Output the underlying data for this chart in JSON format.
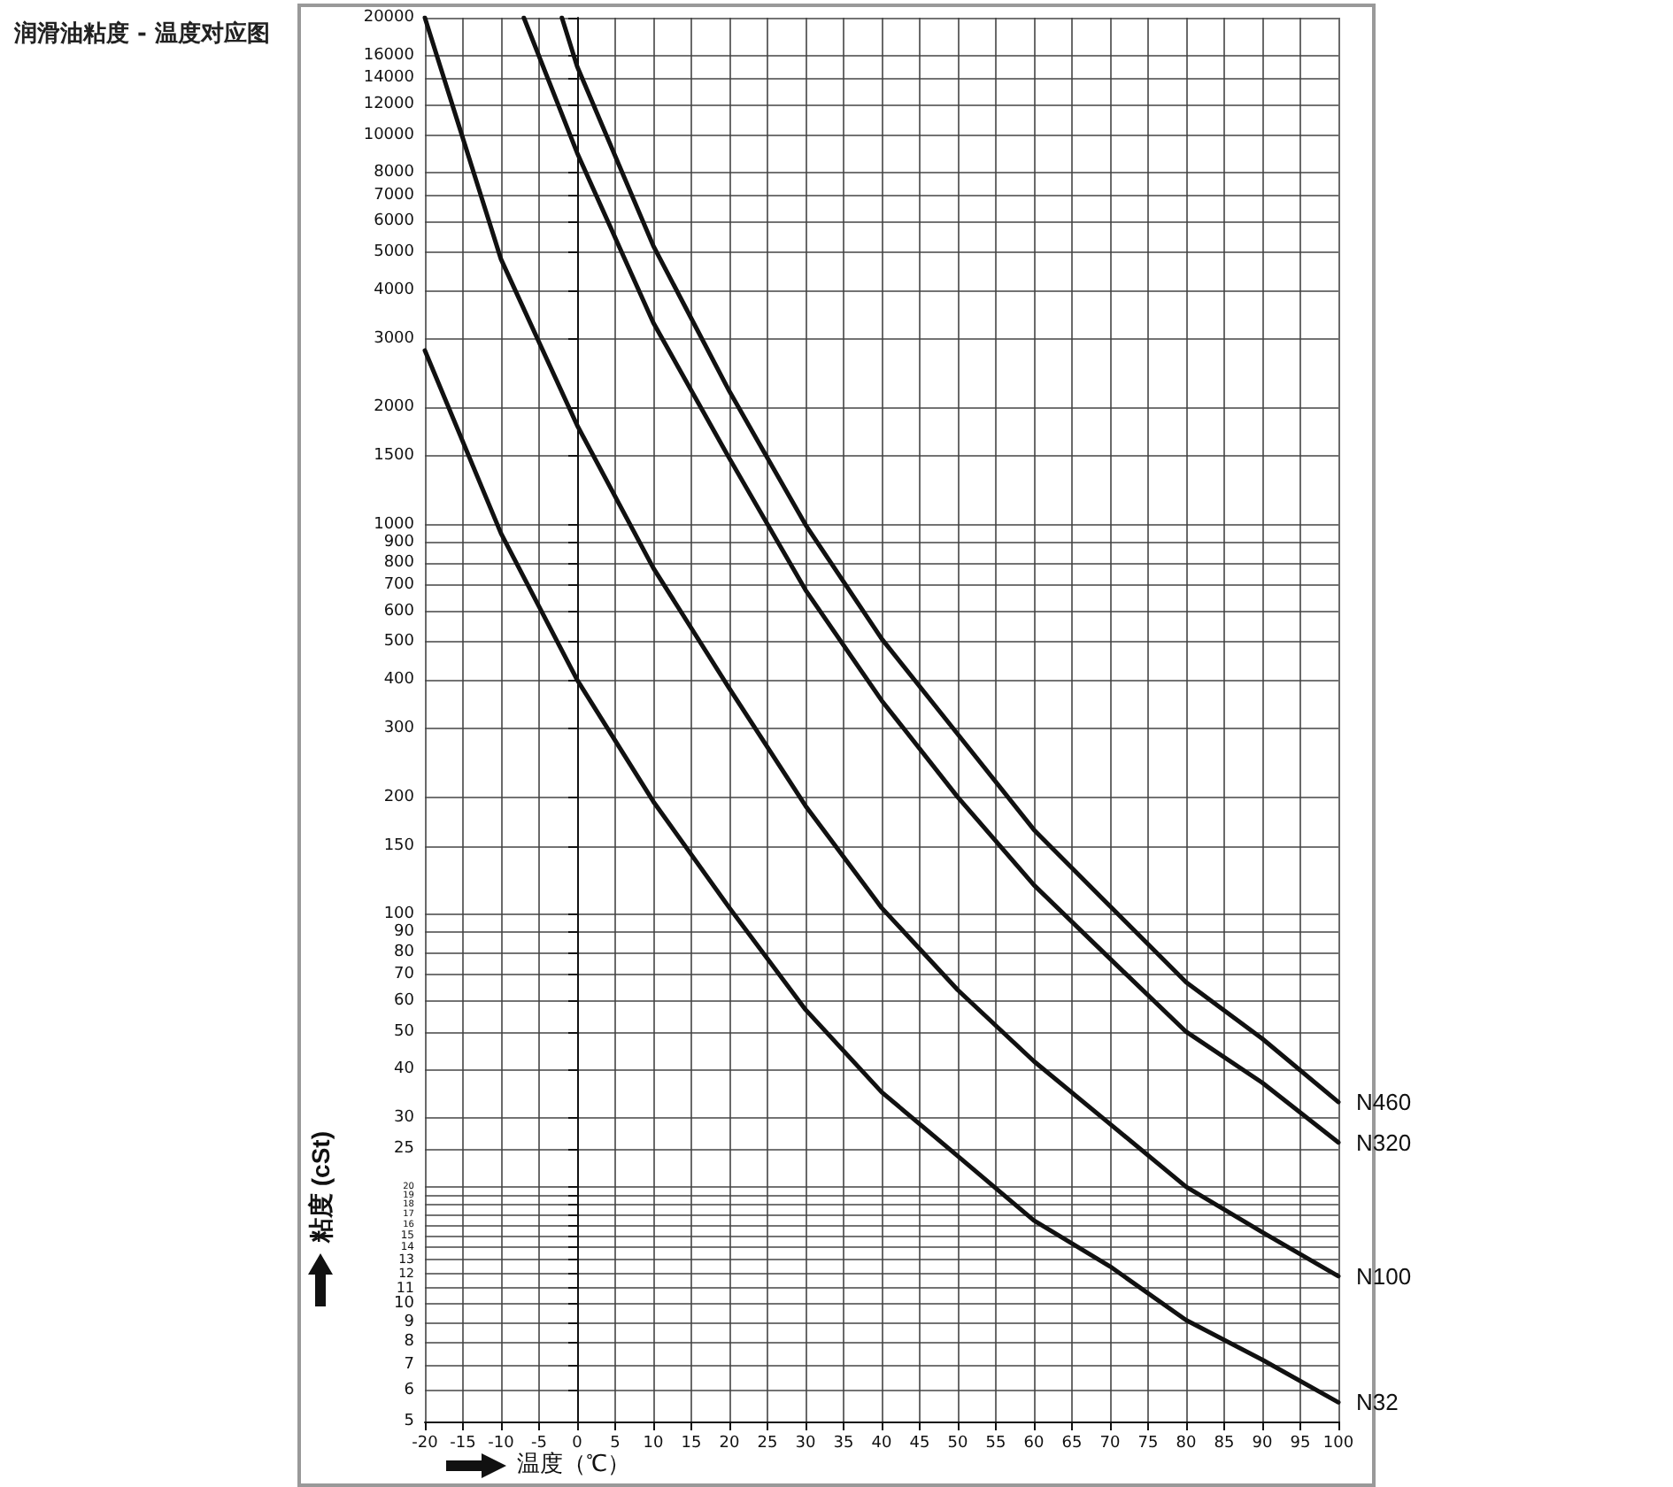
{
  "chart_data": {
    "type": "line",
    "title": "润滑油粘度 - 温度对应图",
    "xlabel": "温度（℃）",
    "ylabel": "粘度 (cSt)",
    "series": [
      {
        "name": "N460",
        "color": "#111111",
        "x": [
          -2,
          0,
          10,
          20,
          30,
          40,
          50,
          60,
          70,
          80,
          90,
          100
        ],
        "values": [
          20000,
          15000,
          5200,
          2200,
          1000,
          510,
          290,
          165,
          105,
          67,
          48,
          33
        ]
      },
      {
        "name": "N320",
        "color": "#111111",
        "x": [
          -7,
          0,
          10,
          20,
          30,
          40,
          50,
          60,
          70,
          80,
          90,
          100
        ],
        "values": [
          20000,
          9000,
          3300,
          1480,
          680,
          354,
          200,
          119,
          77,
          50,
          37,
          26
        ]
      },
      {
        "name": "N100",
        "color": "#111111",
        "x": [
          -20,
          -10,
          0,
          10,
          20,
          30,
          40,
          50,
          60,
          70,
          80,
          90,
          100
        ],
        "values": [
          20000,
          4800,
          1800,
          775,
          380,
          190,
          104,
          64,
          42,
          29,
          20,
          15.3,
          11.8
        ]
      },
      {
        "name": "N32",
        "color": "#111111",
        "x": [
          -20,
          -10,
          0,
          10,
          20,
          30,
          40,
          50,
          60,
          70,
          80,
          90,
          100
        ],
        "values": [
          2800,
          950,
          400,
          195,
          104,
          57,
          35,
          24,
          16.4,
          12.5,
          9.1,
          7.2,
          5.6
        ]
      }
    ],
    "xlim": [
      -20,
      100
    ],
    "xticks": [
      -20,
      -15,
      -10,
      -5,
      0,
      5,
      10,
      15,
      20,
      25,
      30,
      35,
      40,
      45,
      50,
      55,
      60,
      65,
      70,
      75,
      80,
      85,
      90,
      95,
      100
    ],
    "ylim": [
      5,
      20000
    ],
    "yticks": [
      20000,
      16000,
      14000,
      12000,
      10000,
      8000,
      7000,
      6000,
      5000,
      4000,
      3000,
      2000,
      1500,
      1000,
      900,
      800,
      700,
      600,
      500,
      400,
      300,
      200,
      150,
      100,
      90,
      80,
      70,
      60,
      50,
      40,
      30,
      25,
      20,
      19,
      18,
      17,
      16,
      15,
      14,
      13,
      12,
      11,
      10,
      9,
      8,
      7,
      6,
      5
    ],
    "log": "y",
    "grid": true,
    "legend": false,
    "marker": "none",
    "line_style": "solid"
  }
}
